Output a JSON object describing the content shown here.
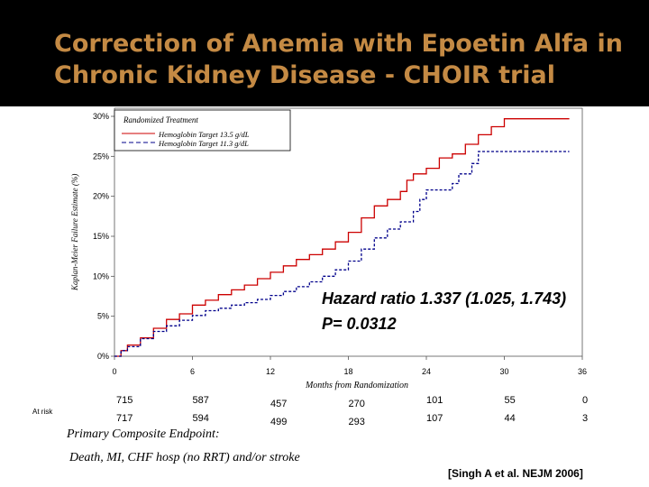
{
  "title": {
    "line1": "Correction of Anemia with Epoetin Alfa in",
    "line2": "Chronic Kidney Disease  - CHOIR trial"
  },
  "colors": {
    "title_bg": "#000000",
    "title_text": "#c48a44",
    "series_high": "#cc0000",
    "series_low": "#00008b"
  },
  "chart_data": {
    "type": "line",
    "step": true,
    "title": "Randomized Treatment",
    "ylabel": "Kaplan-Meier Failure Estimate (%)",
    "xlabel": "Months from Randomization",
    "xlim": [
      0,
      36
    ],
    "ylim": [
      0,
      30
    ],
    "x_ticks": [
      0,
      6,
      12,
      18,
      24,
      30,
      36
    ],
    "y_ticks": [
      0,
      5,
      10,
      15,
      20,
      25,
      30
    ],
    "y_tick_labels": [
      "0%",
      "5%",
      "10%",
      "15%",
      "20%",
      "25%",
      "30%"
    ],
    "legend_position": "top-left",
    "series": [
      {
        "name": "Hemoglobin Target 13.5 g/dL",
        "style": "solid",
        "color": "#cc0000",
        "x": [
          0,
          0.5,
          1,
          2,
          3,
          4,
          5,
          6,
          7,
          8,
          9,
          10,
          11,
          12,
          13,
          14,
          15,
          16,
          17,
          18,
          19,
          20,
          21,
          22,
          22.5,
          23,
          24,
          25,
          26,
          27,
          28,
          29,
          30,
          35
        ],
        "y": [
          0,
          0.7,
          1.4,
          2.3,
          3.5,
          4.6,
          5.3,
          6.4,
          7.0,
          7.7,
          8.3,
          8.9,
          9.7,
          10.5,
          11.3,
          12.1,
          12.7,
          13.4,
          14.3,
          15.5,
          17.3,
          18.8,
          19.6,
          20.6,
          22.0,
          22.8,
          23.5,
          24.8,
          25.3,
          26.5,
          27.7,
          28.7,
          29.7,
          29.7
        ]
      },
      {
        "name": "Hemoglobin Target 11.3 g/dL",
        "style": "dashed",
        "color": "#00008b",
        "x": [
          0,
          0.5,
          1,
          2,
          3,
          4,
          5,
          6,
          7,
          8,
          9,
          10,
          11,
          12,
          13,
          14,
          15,
          16,
          17,
          18,
          19,
          20,
          21,
          22,
          23,
          23.5,
          24,
          25,
          26,
          26.5,
          27,
          27.5,
          28,
          35
        ],
        "y": [
          0,
          0.7,
          1.2,
          2.2,
          3.1,
          3.8,
          4.5,
          5.1,
          5.7,
          6.0,
          6.4,
          6.7,
          7.1,
          7.6,
          8.1,
          8.7,
          9.3,
          10.0,
          10.8,
          11.9,
          13.4,
          14.8,
          15.9,
          16.8,
          18.1,
          19.6,
          20.8,
          20.8,
          21.6,
          22.8,
          22.8,
          24.1,
          25.6,
          25.6
        ]
      }
    ],
    "annotation_hr": "Hazard ratio  1.337  (1.025, 1.743)",
    "annotation_p": "P= 0.0312"
  },
  "at_risk": {
    "label": "At risk",
    "row_high": [
      "715",
      "587",
      "457",
      "270",
      "101",
      "55",
      "0"
    ],
    "row_low": [
      "717",
      "594",
      "499",
      "293",
      "107",
      "44",
      "3"
    ]
  },
  "endpoint": {
    "line1": "Primary Composite Endpoint:",
    "line2": "Death, MI, CHF hosp (no RRT) and/or stroke"
  },
  "citation": "[Singh A et al. NEJM 2006]"
}
